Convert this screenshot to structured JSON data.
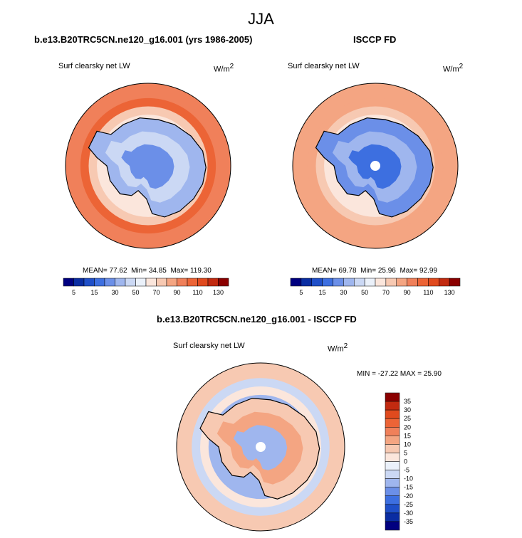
{
  "page_title": "JJA",
  "colors": {
    "cool": [
      "#000080",
      "#0a2da2",
      "#1f4fc8",
      "#3d6fe0",
      "#6b8fe8",
      "#9fb6ee",
      "#cbd8f4",
      "#ebf1fa"
    ],
    "warm": [
      "#fbe6dc",
      "#f7c9b2",
      "#f4a582",
      "#f0805a",
      "#ec6436",
      "#e04a1e",
      "#c22a10",
      "#8b0000"
    ],
    "coastline": "#000000",
    "pole_hole": "#ffffff"
  },
  "chart_data": [
    {
      "type": "heatmap",
      "projection": "south-polar-stereographic",
      "title": "b.e13.B20TRC5CN.ne120_g16.001 (yrs 1986-2005)",
      "variable": "Surf clearsky net LW",
      "units": "W/m",
      "units_exp": "2",
      "stats": {
        "mean_label": "MEAN=",
        "mean": "77.62",
        "min_label": "Min=",
        "min": "34.85",
        "max_label": "Max=",
        "max": "119.30"
      },
      "colorbar": {
        "orientation": "horizontal",
        "levels": [
          5,
          10,
          15,
          20,
          30,
          40,
          50,
          60,
          70,
          80,
          90,
          100,
          110,
          120,
          130
        ],
        "tick_labels": [
          "5",
          "15",
          "30",
          "50",
          "70",
          "90",
          "110",
          "130"
        ]
      },
      "pole_missing": false
    },
    {
      "type": "heatmap",
      "projection": "south-polar-stereographic",
      "title": "ISCCP FD",
      "variable": "Surf clearsky net LW",
      "units": "W/m",
      "units_exp": "2",
      "stats": {
        "mean_label": "MEAN=",
        "mean": "69.78",
        "min_label": "Min=",
        "min": "25.96",
        "max_label": "Max=",
        "max": "92.99"
      },
      "colorbar": {
        "orientation": "horizontal",
        "levels": [
          5,
          10,
          15,
          20,
          30,
          40,
          50,
          60,
          70,
          80,
          90,
          100,
          110,
          120,
          130
        ],
        "tick_labels": [
          "5",
          "15",
          "30",
          "50",
          "70",
          "90",
          "110",
          "130"
        ]
      },
      "pole_missing": true
    },
    {
      "type": "heatmap",
      "projection": "south-polar-stereographic",
      "title": "b.e13.B20TRC5CN.ne120_g16.001 - ISCCP FD",
      "variable": "Surf clearsky net LW",
      "units": "W/m",
      "units_exp": "2",
      "stats_text": "MIN = -27.22 MAX =  25.90",
      "colorbar": {
        "orientation": "vertical",
        "levels": [
          35,
          30,
          25,
          20,
          15,
          10,
          5,
          0,
          -5,
          -10,
          -15,
          -20,
          -25,
          -30,
          -35
        ],
        "tick_labels": [
          "35",
          "30",
          "25",
          "20",
          "15",
          "10",
          "5",
          "0",
          "-5",
          "-10",
          "-15",
          "-20",
          "-25",
          "-30",
          "-35"
        ]
      },
      "pole_missing": true
    }
  ]
}
